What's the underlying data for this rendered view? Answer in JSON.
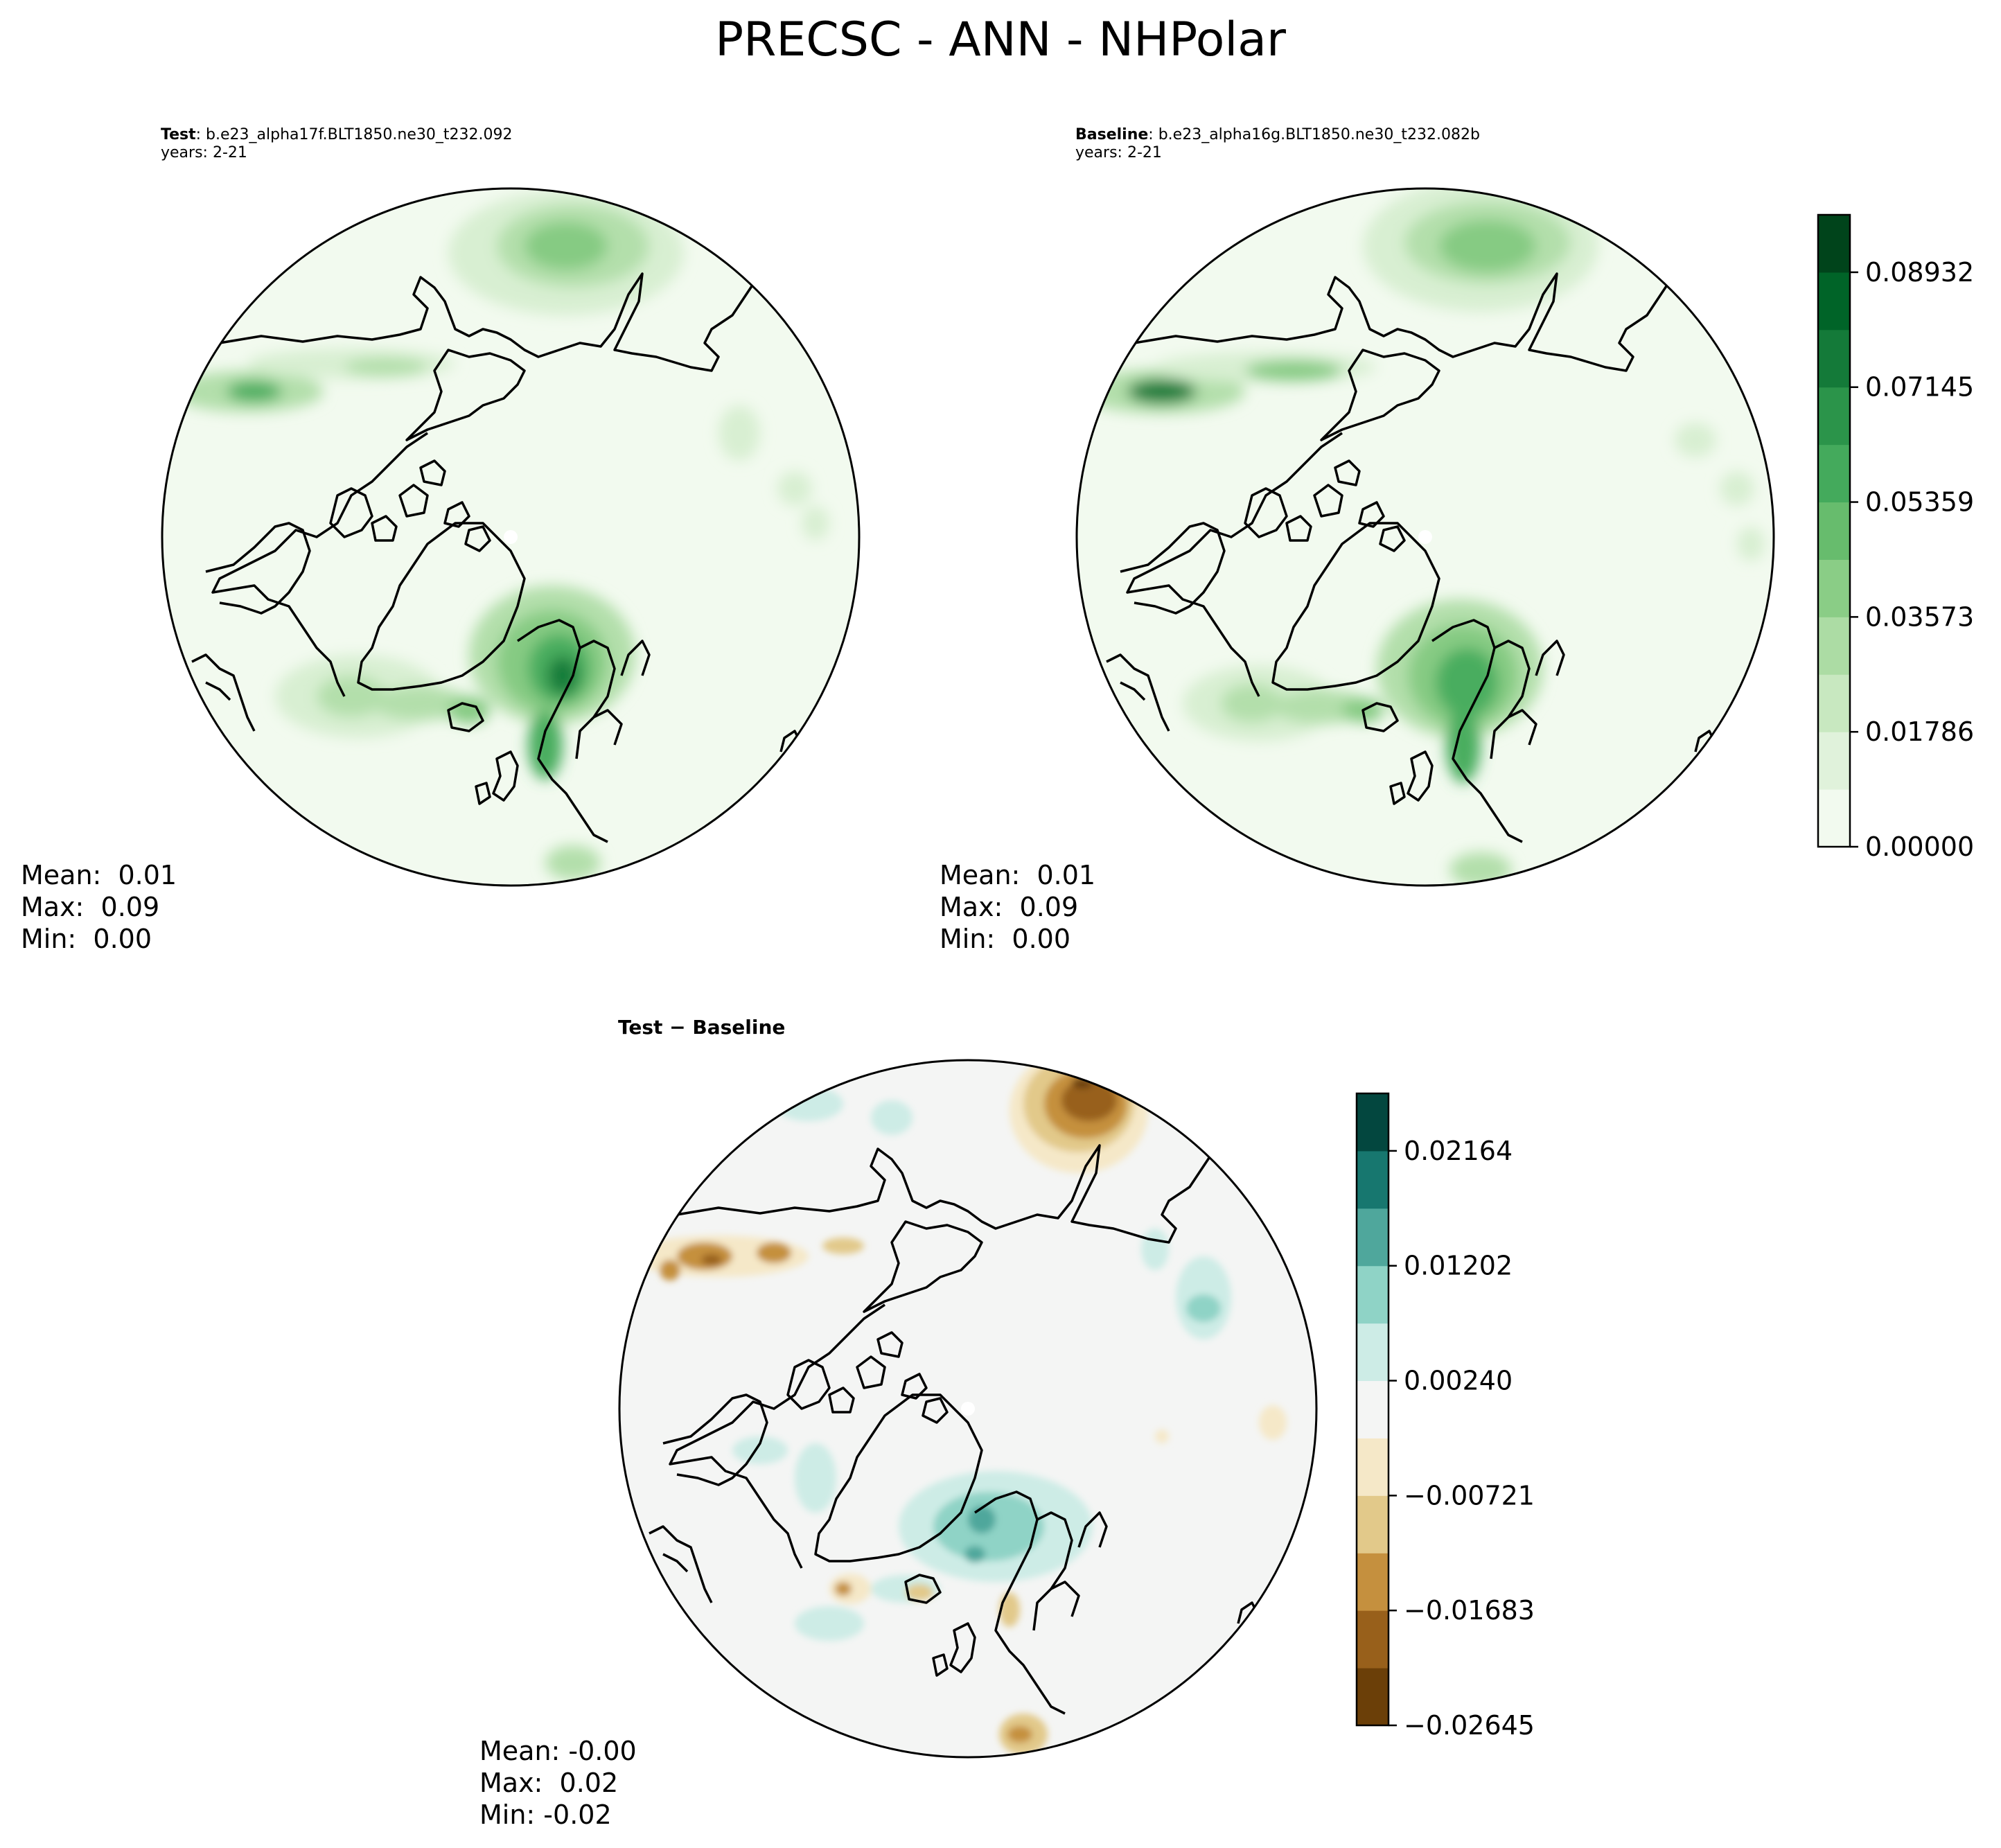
{
  "figure": {
    "title": "PRECSC - ANN - NHPolar"
  },
  "panels": {
    "test": {
      "title_bold": "Test",
      "title_rest": ": b.e23_alpha17f.BLT1850.ne30_t232.092",
      "years": "years: 2-21",
      "stats": {
        "mean": "Mean:  0.01",
        "max": "Max:  0.09",
        "min": "Min:  0.00"
      }
    },
    "baseline": {
      "title_bold": "Baseline",
      "title_rest": ": b.e23_alpha16g.BLT1850.ne30_t232.082b",
      "years": "years: 2-21",
      "stats": {
        "mean": "Mean:  0.01",
        "max": "Max:  0.09",
        "min": "Min:  0.00"
      }
    },
    "diff": {
      "title_bold": "Test − Baseline",
      "stats": {
        "mean": "Mean: -0.00",
        "max": "Max:  0.02",
        "min": "Min: -0.02"
      }
    }
  },
  "colorbars": {
    "main": {
      "tick_labels": [
        "0.00000",
        "0.01786",
        "0.03573",
        "0.05359",
        "0.07145",
        "0.08932"
      ],
      "colors": [
        "#f2faef",
        "#e0f2db",
        "#c8e8c0",
        "#acdca4",
        "#8acd86",
        "#67bc6d",
        "#44aa5c",
        "#2b944a",
        "#147a39",
        "#006428",
        "#00441b"
      ]
    },
    "diff": {
      "tick_labels": [
        "−0.02645",
        "−0.01683",
        "−0.00721",
        "0.00240",
        "0.01202",
        "0.02164"
      ],
      "colors": [
        "#6b3f08",
        "#98601b",
        "#c5903e",
        "#e2c98a",
        "#f5e8c8",
        "#f4f5f4",
        "#cdece6",
        "#8fd3c6",
        "#4fa79c",
        "#17776f",
        "#03473f"
      ]
    }
  },
  "map_colors": {
    "ocean_low": "#f2faef",
    "green_1": "#d8efd2",
    "green_2": "#b3dfab",
    "green_3": "#86cb83",
    "green_4": "#48ad5e",
    "green_5": "#157d3b",
    "green_6": "#00501f",
    "diff_bg": "#f4f5f4",
    "tan_1": "#f5e8c8",
    "tan_2": "#e2c98a",
    "brown_1": "#c5903e",
    "brown_2": "#98601b",
    "brown_3": "#6b3f08",
    "teal_1": "#cdece6",
    "teal_2": "#8fd3c6",
    "teal_3": "#4fa79c"
  }
}
